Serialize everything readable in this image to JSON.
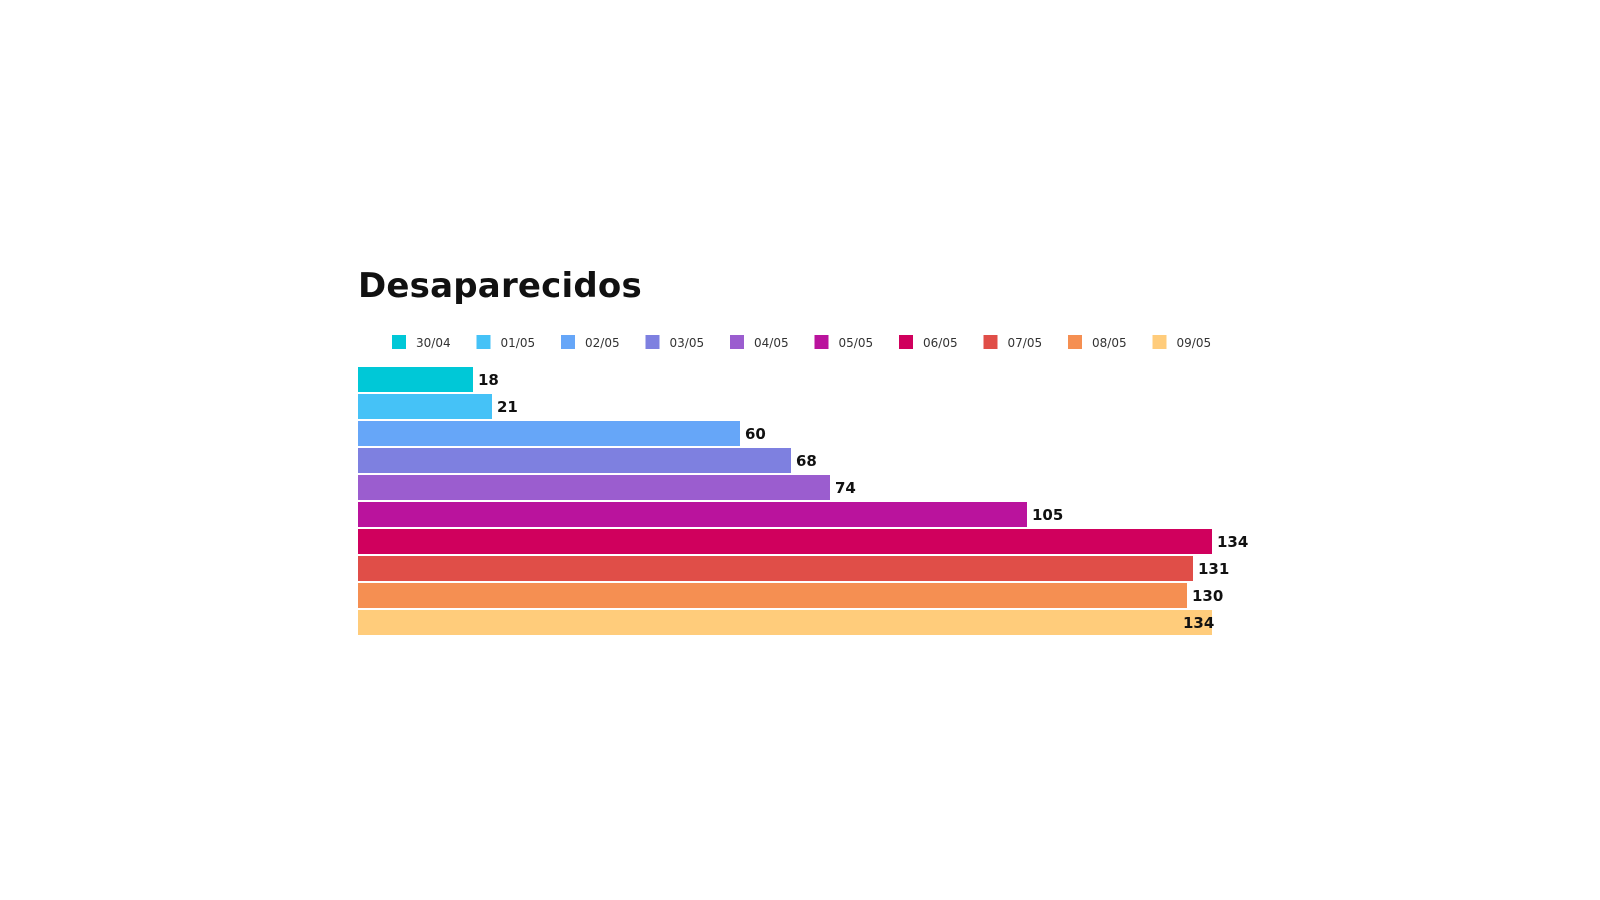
{
  "chart_data": {
    "type": "bar",
    "orientation": "horizontal",
    "title": "Desaparecidos",
    "xlabel": "",
    "ylabel": "",
    "grid": false,
    "legend_position": "top",
    "series": [
      {
        "name": "30/04",
        "value": 18,
        "color": "#00C8D7"
      },
      {
        "name": "01/05",
        "value": 21,
        "color": "#45C2F7"
      },
      {
        "name": "02/05",
        "value": 60,
        "color": "#66A6F8"
      },
      {
        "name": "03/05",
        "value": 68,
        "color": "#7E80E0"
      },
      {
        "name": "04/05",
        "value": 74,
        "color": "#9B5DCF"
      },
      {
        "name": "05/05",
        "value": 105,
        "color": "#BA139D"
      },
      {
        "name": "06/05",
        "value": 134,
        "color": "#D0005D"
      },
      {
        "name": "07/05",
        "value": 131,
        "color": "#E04E48"
      },
      {
        "name": "08/05",
        "value": 130,
        "color": "#F58F52"
      },
      {
        "name": "09/05",
        "value": 134,
        "color": "#FFCC7B"
      }
    ],
    "xlim": [
      0,
      134
    ]
  }
}
